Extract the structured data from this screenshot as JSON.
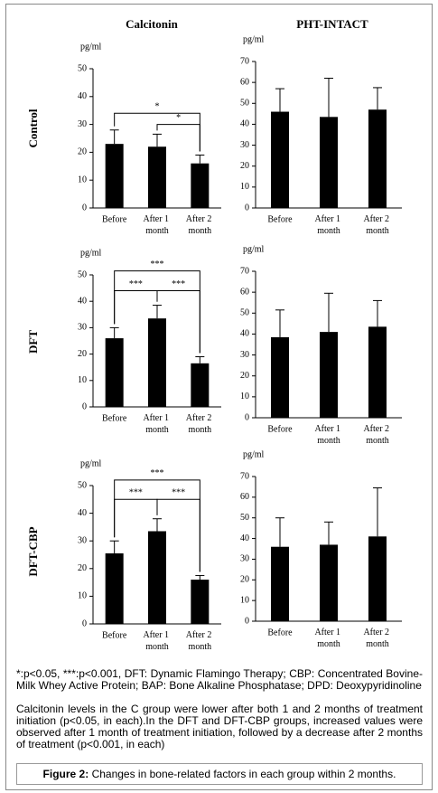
{
  "column_titles": [
    "Calcitonin",
    "PHT-INTACT"
  ],
  "row_labels": [
    "Control",
    "DFT",
    "DFT-CBP"
  ],
  "notes": [
    "*:p<0.05, ***:p<0.001, DFT: Dynamic Flamingo Therapy; CBP: Concentrated Bovine-Milk Whey Active Protein; BAP: Bone Alkaline Phosphatase; DPD: Deoxypyridinoline",
    "Calcitonin levels in the C group were lower after both 1 and 2 months of treatment initiation (p<0.05, in each).In the DFT and DFT-CBP groups, increased values were observed after 1 month of treatment initiation, followed by a decrease after 2 months of treatment (p<0.001, in each)"
  ],
  "figure_label": "Figure 2:",
  "figure_caption": "Changes in bone-related factors in each group within 2 months.",
  "chart_data": [
    {
      "type": "bar",
      "y_unit": "pg/ml",
      "categories": [
        "Before",
        "After 1 month",
        "After 2 month"
      ],
      "values": [
        23,
        22,
        16
      ],
      "errors": [
        5,
        4.5,
        3
      ],
      "color": "#000000",
      "ylim": [
        0,
        50
      ],
      "yticks": [
        0,
        10,
        20,
        30,
        40,
        50
      ],
      "significance": [
        {
          "label": "*",
          "between": [
            0,
            2
          ],
          "level": 34
        },
        {
          "label": "*",
          "between": [
            1,
            2
          ],
          "level": 30
        }
      ]
    },
    {
      "type": "bar",
      "y_unit": "pg/ml",
      "categories": [
        "Before",
        "After 1 month",
        "After 2 month"
      ],
      "values": [
        46,
        43.5,
        47
      ],
      "errors": [
        11,
        18.5,
        10.5
      ],
      "color": "#000000",
      "ylim": [
        0,
        70
      ],
      "yticks": [
        0,
        10,
        20,
        30,
        40,
        50,
        60,
        70
      ]
    },
    {
      "type": "bar",
      "y_unit": "pg/ml",
      "categories": [
        "Before",
        "After 1 month",
        "After 2 month"
      ],
      "values": [
        26,
        33.5,
        16.5
      ],
      "errors": [
        4,
        5,
        2.5
      ],
      "color": "#000000",
      "ylim": [
        0,
        50
      ],
      "yticks": [
        0,
        10,
        20,
        30,
        40,
        50
      ],
      "significance": [
        {
          "label": "***",
          "between": [
            0,
            2
          ],
          "level": 51.5
        },
        {
          "label": "***",
          "between": [
            0,
            1
          ],
          "level": 44
        },
        {
          "label": "***",
          "between": [
            1,
            2
          ],
          "level": 44
        }
      ]
    },
    {
      "type": "bar",
      "y_unit": "pg/ml",
      "categories": [
        "Before",
        "After 1 month",
        "After 2 month"
      ],
      "values": [
        38.5,
        41,
        43.5
      ],
      "errors": [
        13,
        18.5,
        12.5
      ],
      "color": "#000000",
      "ylim": [
        0,
        70
      ],
      "yticks": [
        0,
        10,
        20,
        30,
        40,
        50,
        60,
        70
      ]
    },
    {
      "type": "bar",
      "y_unit": "pg/ml",
      "categories": [
        "Before",
        "After 1 month",
        "After 2 month"
      ],
      "values": [
        25.5,
        33.5,
        16
      ],
      "errors": [
        4.5,
        4.5,
        1.5
      ],
      "color": "#000000",
      "ylim": [
        0,
        50
      ],
      "yticks": [
        0,
        10,
        20,
        30,
        40,
        50
      ],
      "significance": [
        {
          "label": "***",
          "between": [
            0,
            2
          ],
          "level": 52
        },
        {
          "label": "***",
          "between": [
            0,
            1
          ],
          "level": 45
        },
        {
          "label": "***",
          "between": [
            1,
            2
          ],
          "level": 45
        }
      ]
    },
    {
      "type": "bar",
      "y_unit": "pg/ml",
      "categories": [
        "Before",
        "After 1 month",
        "After 2 month"
      ],
      "values": [
        36,
        37,
        41
      ],
      "errors": [
        14,
        11,
        23.5
      ],
      "color": "#000000",
      "ylim": [
        0,
        70
      ],
      "yticks": [
        0,
        10,
        20,
        30,
        40,
        50,
        60,
        70
      ]
    }
  ]
}
